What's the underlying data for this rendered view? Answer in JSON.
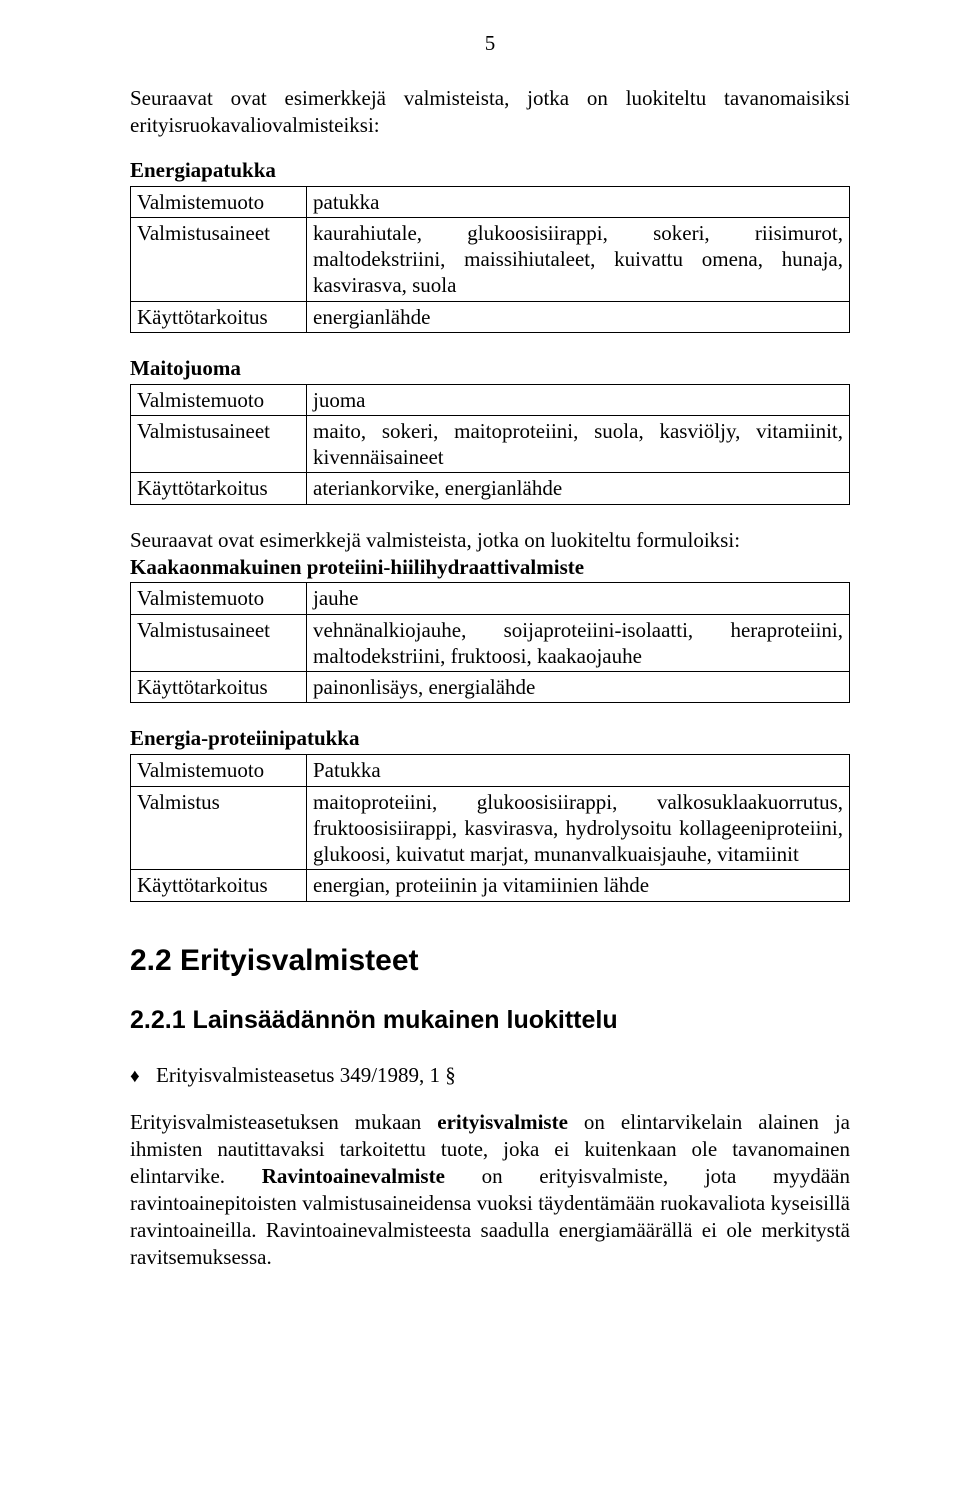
{
  "page_number": "5",
  "intro1": "Seuraavat ovat esimerkkejä valmisteista, jotka on luokiteltu tavanomaisiksi erityisruokavaliovalmisteiksi:",
  "tables": {
    "t1": {
      "title": "Energiapatukka",
      "rows": [
        [
          "Valmistemuoto",
          "patukka"
        ],
        [
          "Valmistusaineet",
          "kaurahiutale, glukoosisiirappi, sokeri, riisimurot, maltodekstriini, maissihiutaleet, kuivattu omena, hunaja, kasvirasva, suola"
        ],
        [
          "Käyttötarkoitus",
          "energianlähde"
        ]
      ]
    },
    "t2": {
      "title": "Maitojuoma",
      "rows": [
        [
          "Valmistemuoto",
          "juoma"
        ],
        [
          "Valmistusaineet",
          "maito, sokeri, maitoproteiini, suola, kasviöljy, vitamiinit, kivennäisaineet"
        ],
        [
          "Käyttötarkoitus",
          "ateriankorvike, energianlähde"
        ]
      ]
    },
    "t3": {
      "intro": "Seuraavat ovat esimerkkejä valmisteista, jotka on luokiteltu formuloiksi:",
      "title": "Kaakaonmakuinen proteiini-hiilihydraattivalmiste",
      "rows": [
        [
          "Valmistemuoto",
          "jauhe"
        ],
        [
          "Valmistusaineet",
          "vehnänalkiojauhe, soijaproteiini-isolaatti, heraproteiini, maltodekstriini, fruktoosi, kaakaojauhe"
        ],
        [
          "Käyttötarkoitus",
          "painonlisäys, energialähde"
        ]
      ]
    },
    "t4": {
      "title": "Energia-proteiinipatukka",
      "rows": [
        [
          "Valmistemuoto",
          "Patukka"
        ],
        [
          "Valmistus",
          "maitoproteiini, glukoosisiirappi, valkosuklaakuorrutus, fruktoosisiirappi, kasvirasva, hydrolysoitu kollageeniproteiini, glukoosi, kuivatut marjat, munanvalkuaisjauhe, vitamiinit"
        ],
        [
          "Käyttötarkoitus",
          "energian, proteiinin ja vitamiinien lähde"
        ]
      ]
    }
  },
  "section_heading": "2.2 Erityisvalmisteet",
  "subsection_heading": "2.2.1 Lainsäädännön mukainen luokittelu",
  "bullet_symbol": "♦",
  "bullet_text": "Erityisvalmisteasetus 349/1989, 1 §",
  "bodytext": {
    "pre1": "Erityisvalmisteasetuksen mukaan ",
    "bold1": "erityisvalmiste",
    "mid1": " on elintarvikelain alainen ja ihmisten nautittavaksi tarkoitettu tuote, joka ei kuitenkaan ole tavanomainen elintarvike. ",
    "bold2": "Ravintoainevalmiste",
    "post1": " on erityisvalmiste, jota myydään ravintoainepitoisten valmistusaineidensa vuoksi täydentämään ruokavaliota kyseisillä ravintoaineilla. Ravintoainevalmisteesta saadulla energiamäärällä ei ole merkitystä ravitsemuksessa."
  },
  "colors": {
    "text": "#000000",
    "background": "#ffffff",
    "border": "#000000"
  }
}
